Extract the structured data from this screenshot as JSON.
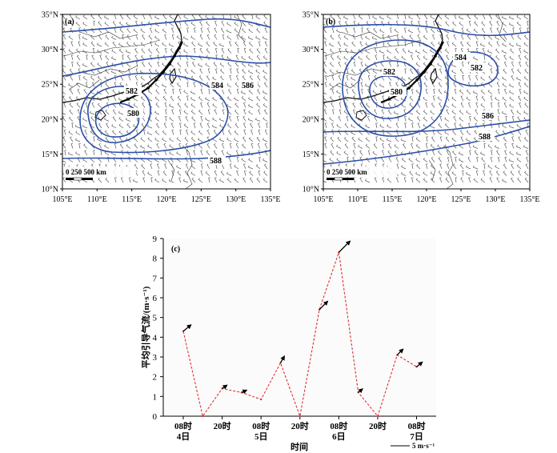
{
  "colors": {
    "contour": "#2b4fa8",
    "barb": "#555555",
    "line": "#e03030",
    "vector": "#000000",
    "frame": "#000000"
  },
  "maps": [
    {
      "panel_label": "(a)",
      "lat_ticks": [
        "35°N",
        "30°N",
        "25°N",
        "20°N",
        "15°N",
        "10°N"
      ],
      "lon_ticks": [
        "105°E",
        "110°E",
        "115°E",
        "120°E",
        "125°E",
        "130°E",
        "135°E"
      ],
      "contour_labels": [
        "582",
        "580",
        "584",
        "586",
        "588"
      ],
      "scale_bar": "0  250 500 km"
    },
    {
      "panel_label": "(b)",
      "lat_ticks": [
        "35°N",
        "30°N",
        "25°N",
        "20°N",
        "15°N",
        "10°N"
      ],
      "lon_ticks": [
        "105°E",
        "110°E",
        "115°E",
        "120°E",
        "125°E",
        "130°E",
        "135°E"
      ],
      "contour_labels": [
        "584",
        "582",
        "580",
        "582",
        "586",
        "588"
      ],
      "scale_bar": "0  250 500 km"
    }
  ],
  "chart_data": {
    "type": "line",
    "panel_label": "(c)",
    "ylabel": "平均引导气流/(m·s⁻¹)",
    "xlabel": "时间",
    "ylim": [
      0,
      9
    ],
    "yticks": [
      "0",
      "1",
      "2",
      "3",
      "4",
      "5",
      "6",
      "7",
      "8",
      "9"
    ],
    "xtick_labels": [
      {
        "x": 0,
        "lines": [
          "08时",
          "4日"
        ]
      },
      {
        "x": 2,
        "lines": [
          "20时",
          ""
        ]
      },
      {
        "x": 4,
        "lines": [
          "08时",
          "5日"
        ]
      },
      {
        "x": 6,
        "lines": [
          "20时",
          ""
        ]
      },
      {
        "x": 8,
        "lines": [
          "08时",
          "6日"
        ]
      },
      {
        "x": 10,
        "lines": [
          "20时",
          ""
        ]
      },
      {
        "x": 12,
        "lines": [
          "08时",
          "7日"
        ]
      }
    ],
    "x": [
      0,
      1,
      2,
      3,
      4,
      5,
      6,
      7,
      8,
      9,
      10,
      11,
      12
    ],
    "values": [
      4.3,
      0.0,
      1.4,
      1.2,
      0.85,
      2.7,
      0.0,
      5.4,
      8.3,
      1.2,
      0.0,
      3.1,
      2.5
    ],
    "vector_dirs_deg": [
      40,
      null,
      35,
      25,
      null,
      60,
      null,
      45,
      45,
      40,
      null,
      45,
      40
    ],
    "vector_legend": "5 m·s⁻¹"
  }
}
